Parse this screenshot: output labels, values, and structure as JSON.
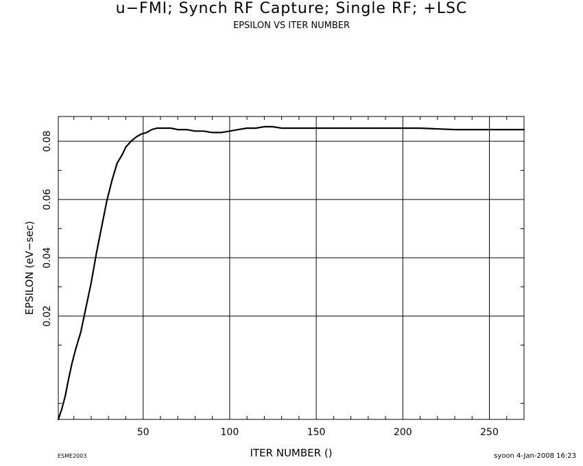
{
  "header": {
    "title": "u−FMI; Synch RF Capture; Single RF; +LSC",
    "subtitle": "EPSILON VS ITER NUMBER"
  },
  "footer": {
    "left": "ESME2003",
    "right": "syoon   4-Jan-2008 16:23"
  },
  "chart_data": {
    "type": "line",
    "title": "u−FMI; Synch RF Capture; Single RF; +LSC",
    "subtitle": "EPSILON VS ITER NUMBER",
    "xlabel": "ITER NUMBER ()",
    "ylabel": "EPSILON (eV−sec)",
    "xlim": [
      1,
      270
    ],
    "ylim": [
      -0.0155,
      0.0885
    ],
    "xticks": [
      50,
      100,
      150,
      200,
      250
    ],
    "xtick_labels": [
      "50",
      "100",
      "150",
      "200",
      "250"
    ],
    "yticks": [
      0.02,
      0.04,
      0.06,
      0.08
    ],
    "ytick_labels": [
      "0.02",
      "0.04",
      "0.06",
      "0.08"
    ],
    "grid": true,
    "series": [
      {
        "x": [
          1,
          3,
          5,
          7,
          9,
          11,
          14,
          17,
          20,
          23,
          26,
          29,
          32,
          35,
          38,
          40,
          43,
          46,
          49,
          52,
          55,
          58,
          62,
          66,
          70,
          75,
          80,
          85,
          90,
          95,
          100,
          105,
          110,
          115,
          120,
          125,
          130,
          140,
          150,
          170,
          190,
          210,
          230,
          250,
          270
        ],
        "y": [
          -0.0155,
          -0.012,
          -0.0075,
          -0.0015,
          0.004,
          0.0085,
          0.0145,
          0.023,
          0.0315,
          0.0415,
          0.0505,
          0.0595,
          0.0665,
          0.0725,
          0.0755,
          0.078,
          0.08,
          0.0815,
          0.0825,
          0.083,
          0.084,
          0.0845,
          0.0845,
          0.0845,
          0.084,
          0.084,
          0.0835,
          0.0835,
          0.083,
          0.083,
          0.0835,
          0.084,
          0.0845,
          0.0845,
          0.085,
          0.085,
          0.0845,
          0.0845,
          0.0845,
          0.0845,
          0.0845,
          0.0845,
          0.084,
          0.084,
          0.084
        ]
      }
    ]
  }
}
